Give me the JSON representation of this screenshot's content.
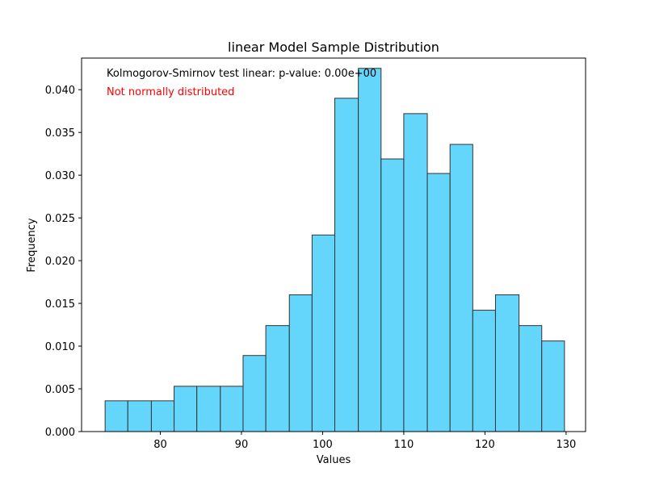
{
  "chart_data": {
    "type": "bar",
    "title": "linear Model Sample Distribution",
    "xlabel": "Values",
    "ylabel": "Frequency",
    "xlim": [
      70.3,
      132.4
    ],
    "ylim": [
      0,
      0.0437
    ],
    "xticks": [
      80,
      90,
      100,
      110,
      120,
      130
    ],
    "yticks": [
      0.0,
      0.005,
      0.01,
      0.015,
      0.02,
      0.025,
      0.03,
      0.035,
      0.04
    ],
    "ytick_labels": [
      "0.000",
      "0.005",
      "0.010",
      "0.015",
      "0.020",
      "0.025",
      "0.030",
      "0.035",
      "0.040"
    ],
    "bin_edges": [
      73.2,
      76.0,
      78.9,
      81.7,
      84.5,
      87.4,
      90.2,
      93.0,
      95.9,
      98.7,
      101.5,
      104.4,
      107.2,
      110.0,
      112.9,
      115.7,
      118.5,
      121.3,
      124.2,
      127.0,
      129.8
    ],
    "values": [
      0.0036,
      0.0036,
      0.0036,
      0.0053,
      0.0053,
      0.0053,
      0.0089,
      0.0124,
      0.016,
      0.023,
      0.039,
      0.0425,
      0.0319,
      0.0372,
      0.0302,
      0.0336,
      0.0142,
      0.016,
      0.0124,
      0.0106
    ],
    "bar_color": "#64d6fc",
    "edge_color": "#333333",
    "grid": false,
    "annotations": [
      {
        "text": "Kolmogorov-Smirnov test linear: p-value: 0.00e+00",
        "color": "#000000"
      },
      {
        "text": "Not normally distributed",
        "color": "#ff0000"
      }
    ]
  }
}
